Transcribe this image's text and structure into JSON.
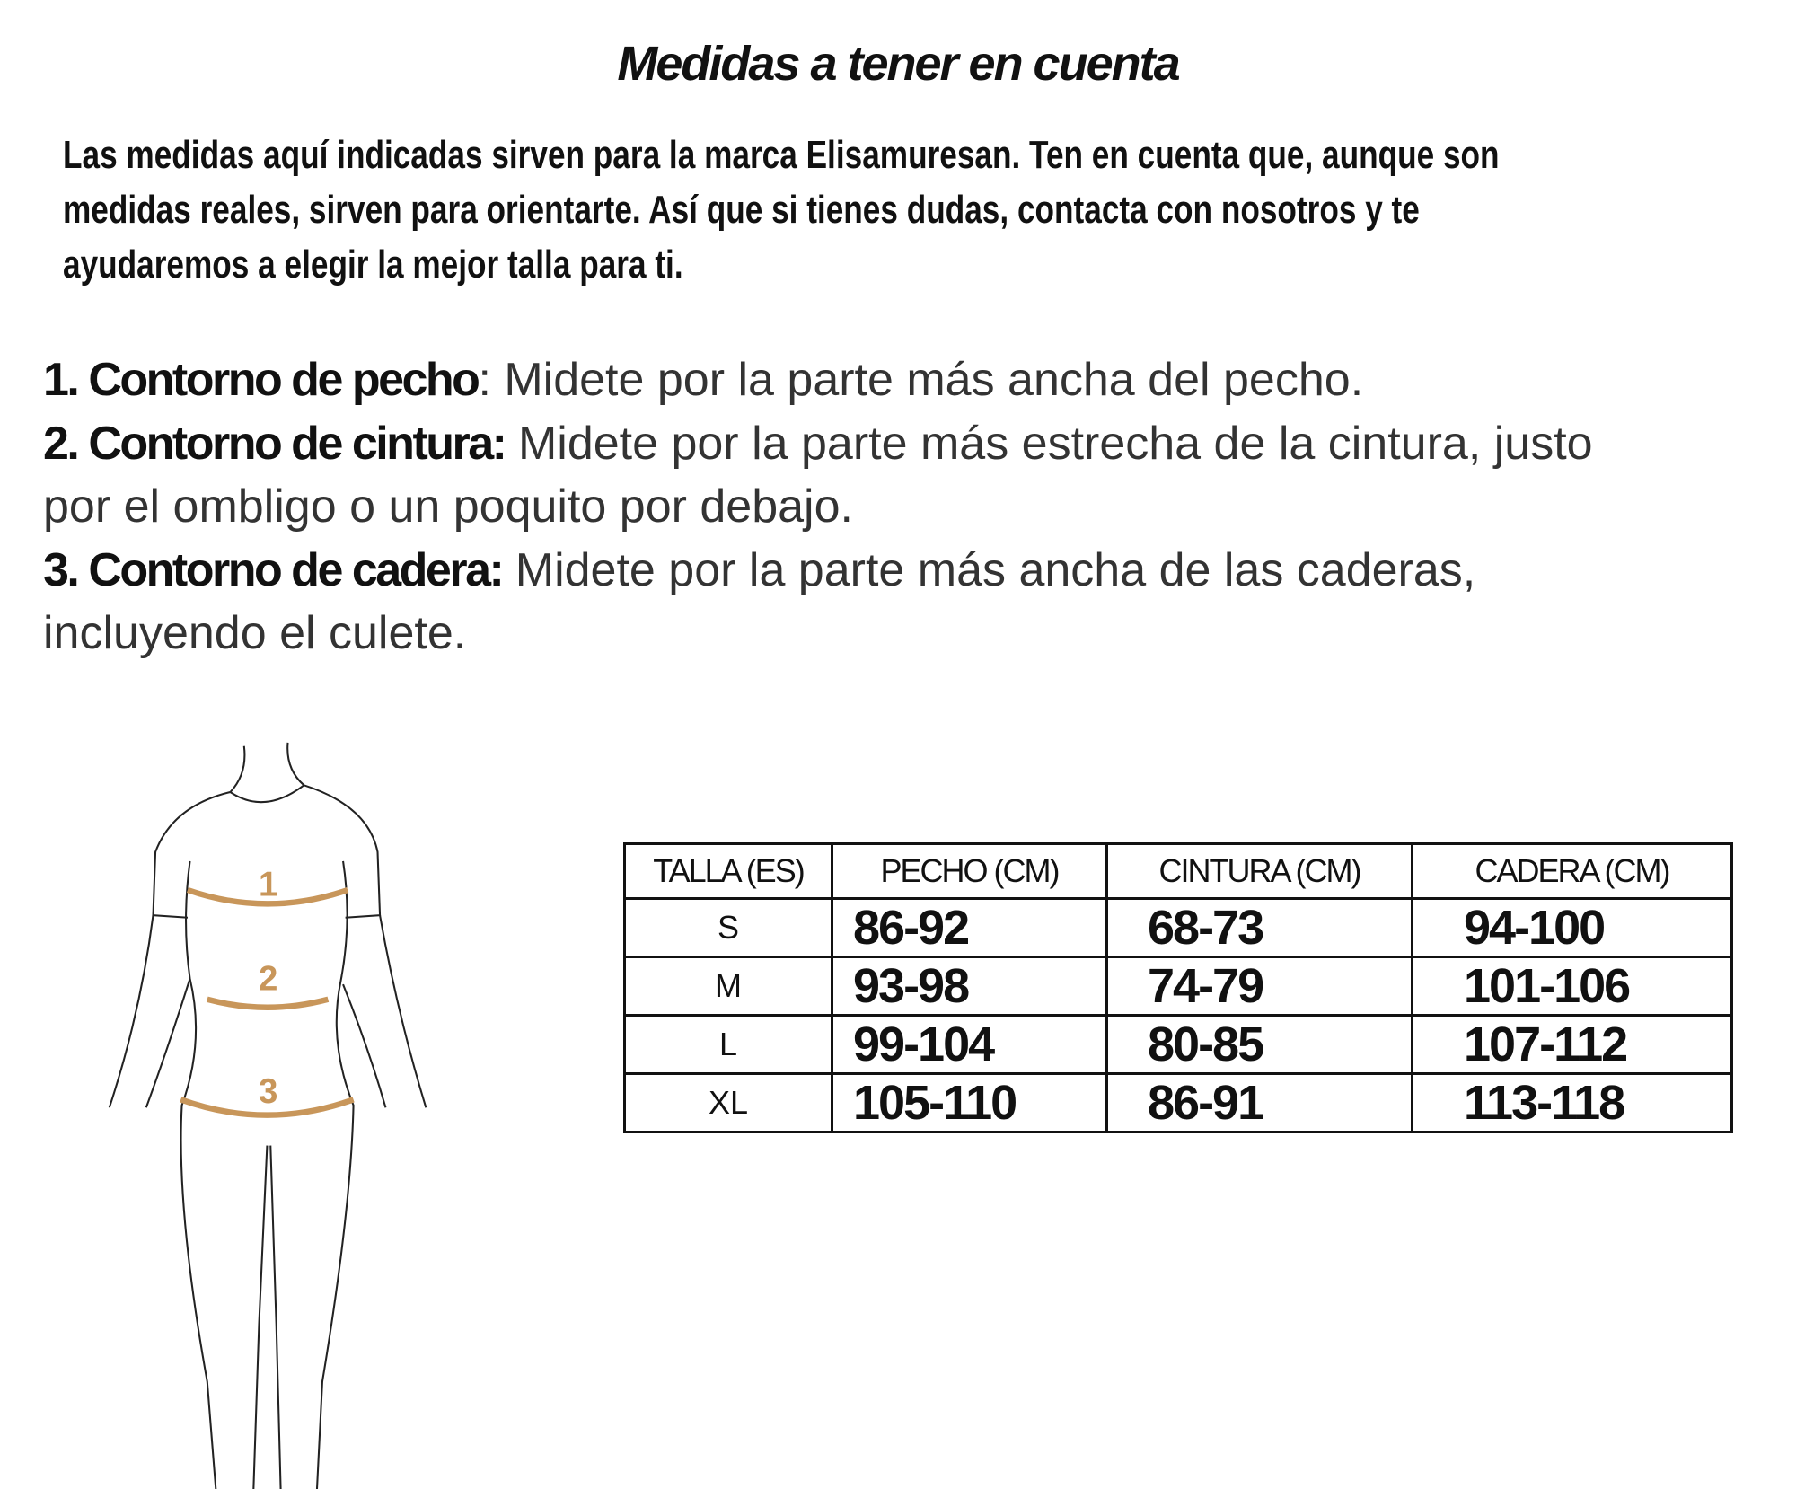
{
  "title": "Medidas a tener en cuenta",
  "intro": [
    "Las medidas aquí indicadas sirven para la marca Elisamuresan. Ten en cuenta que, aunque son",
    "medidas reales, sirven para orientarte. Así que si tienes dudas, contacta con nosotros y te",
    "ayudaremos a elegir la mejor talla para ti."
  ],
  "list": [
    {
      "label": "1.  Contorno de pecho",
      "text": ": Midete por la parte más ancha del pecho.",
      "cont": ""
    },
    {
      "label": "2.  Contorno de cintura:",
      "text": " Midete por la parte más estrecha de la cintura, justo",
      "cont": "por el ombligo o un poquito por debajo."
    },
    {
      "label": "3.  Contorno de cadera:",
      "text": " Midete por la parte más ancha de las caderas,",
      "cont": "incluyendo el culete."
    }
  ],
  "figure": {
    "markers": [
      "1",
      "2",
      "3"
    ],
    "band_color": "#c8965a"
  },
  "table": {
    "headers": [
      "TALLA (ES)",
      "PECHO (CM)",
      "CINTURA (CM)",
      "CADERA (CM)"
    ],
    "rows": [
      [
        "S",
        "86-92",
        "68-73",
        "94-100"
      ],
      [
        "M",
        "93-98",
        "74-79",
        "101-106"
      ],
      [
        "L",
        "99-104",
        "80-85",
        "107-112"
      ],
      [
        "XL",
        "105-110",
        "86-91",
        "113-118"
      ]
    ]
  }
}
